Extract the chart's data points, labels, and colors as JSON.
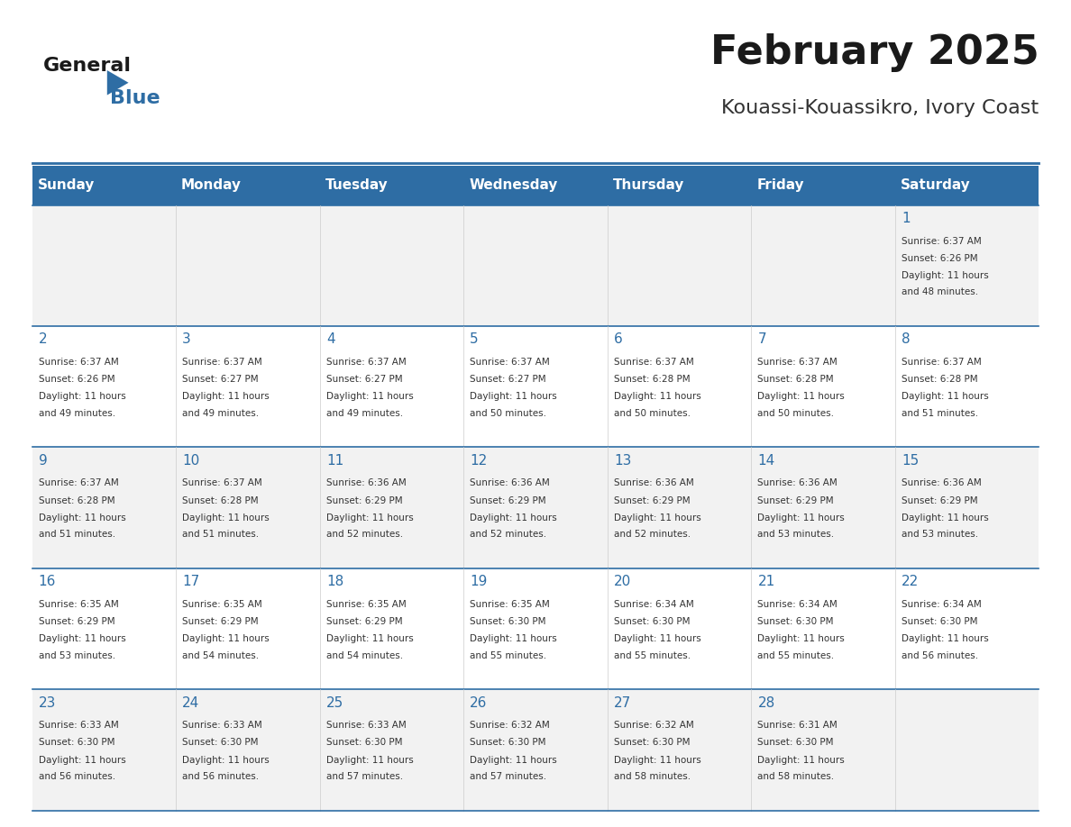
{
  "title": "February 2025",
  "subtitle": "Kouassi-Kouassikro, Ivory Coast",
  "header_bg": "#2E6DA4",
  "header_text_color": "#FFFFFF",
  "days_of_week": [
    "Sunday",
    "Monday",
    "Tuesday",
    "Wednesday",
    "Thursday",
    "Friday",
    "Saturday"
  ],
  "row_bg_odd": "#F2F2F2",
  "row_bg_even": "#FFFFFF",
  "day_number_color": "#2E6DA4",
  "info_text_color": "#333333",
  "calendar": [
    [
      null,
      null,
      null,
      null,
      null,
      null,
      {
        "day": 1,
        "sunrise": "6:37 AM",
        "sunset": "6:26 PM",
        "daylight": "11 hours and 48 minutes."
      }
    ],
    [
      {
        "day": 2,
        "sunrise": "6:37 AM",
        "sunset": "6:26 PM",
        "daylight": "11 hours and 49 minutes."
      },
      {
        "day": 3,
        "sunrise": "6:37 AM",
        "sunset": "6:27 PM",
        "daylight": "11 hours and 49 minutes."
      },
      {
        "day": 4,
        "sunrise": "6:37 AM",
        "sunset": "6:27 PM",
        "daylight": "11 hours and 49 minutes."
      },
      {
        "day": 5,
        "sunrise": "6:37 AM",
        "sunset": "6:27 PM",
        "daylight": "11 hours and 50 minutes."
      },
      {
        "day": 6,
        "sunrise": "6:37 AM",
        "sunset": "6:28 PM",
        "daylight": "11 hours and 50 minutes."
      },
      {
        "day": 7,
        "sunrise": "6:37 AM",
        "sunset": "6:28 PM",
        "daylight": "11 hours and 50 minutes."
      },
      {
        "day": 8,
        "sunrise": "6:37 AM",
        "sunset": "6:28 PM",
        "daylight": "11 hours and 51 minutes."
      }
    ],
    [
      {
        "day": 9,
        "sunrise": "6:37 AM",
        "sunset": "6:28 PM",
        "daylight": "11 hours and 51 minutes."
      },
      {
        "day": 10,
        "sunrise": "6:37 AM",
        "sunset": "6:28 PM",
        "daylight": "11 hours and 51 minutes."
      },
      {
        "day": 11,
        "sunrise": "6:36 AM",
        "sunset": "6:29 PM",
        "daylight": "11 hours and 52 minutes."
      },
      {
        "day": 12,
        "sunrise": "6:36 AM",
        "sunset": "6:29 PM",
        "daylight": "11 hours and 52 minutes."
      },
      {
        "day": 13,
        "sunrise": "6:36 AM",
        "sunset": "6:29 PM",
        "daylight": "11 hours and 52 minutes."
      },
      {
        "day": 14,
        "sunrise": "6:36 AM",
        "sunset": "6:29 PM",
        "daylight": "11 hours and 53 minutes."
      },
      {
        "day": 15,
        "sunrise": "6:36 AM",
        "sunset": "6:29 PM",
        "daylight": "11 hours and 53 minutes."
      }
    ],
    [
      {
        "day": 16,
        "sunrise": "6:35 AM",
        "sunset": "6:29 PM",
        "daylight": "11 hours and 53 minutes."
      },
      {
        "day": 17,
        "sunrise": "6:35 AM",
        "sunset": "6:29 PM",
        "daylight": "11 hours and 54 minutes."
      },
      {
        "day": 18,
        "sunrise": "6:35 AM",
        "sunset": "6:29 PM",
        "daylight": "11 hours and 54 minutes."
      },
      {
        "day": 19,
        "sunrise": "6:35 AM",
        "sunset": "6:30 PM",
        "daylight": "11 hours and 55 minutes."
      },
      {
        "day": 20,
        "sunrise": "6:34 AM",
        "sunset": "6:30 PM",
        "daylight": "11 hours and 55 minutes."
      },
      {
        "day": 21,
        "sunrise": "6:34 AM",
        "sunset": "6:30 PM",
        "daylight": "11 hours and 55 minutes."
      },
      {
        "day": 22,
        "sunrise": "6:34 AM",
        "sunset": "6:30 PM",
        "daylight": "11 hours and 56 minutes."
      }
    ],
    [
      {
        "day": 23,
        "sunrise": "6:33 AM",
        "sunset": "6:30 PM",
        "daylight": "11 hours and 56 minutes."
      },
      {
        "day": 24,
        "sunrise": "6:33 AM",
        "sunset": "6:30 PM",
        "daylight": "11 hours and 56 minutes."
      },
      {
        "day": 25,
        "sunrise": "6:33 AM",
        "sunset": "6:30 PM",
        "daylight": "11 hours and 57 minutes."
      },
      {
        "day": 26,
        "sunrise": "6:32 AM",
        "sunset": "6:30 PM",
        "daylight": "11 hours and 57 minutes."
      },
      {
        "day": 27,
        "sunrise": "6:32 AM",
        "sunset": "6:30 PM",
        "daylight": "11 hours and 58 minutes."
      },
      {
        "day": 28,
        "sunrise": "6:31 AM",
        "sunset": "6:30 PM",
        "daylight": "11 hours and 58 minutes."
      },
      null
    ]
  ]
}
